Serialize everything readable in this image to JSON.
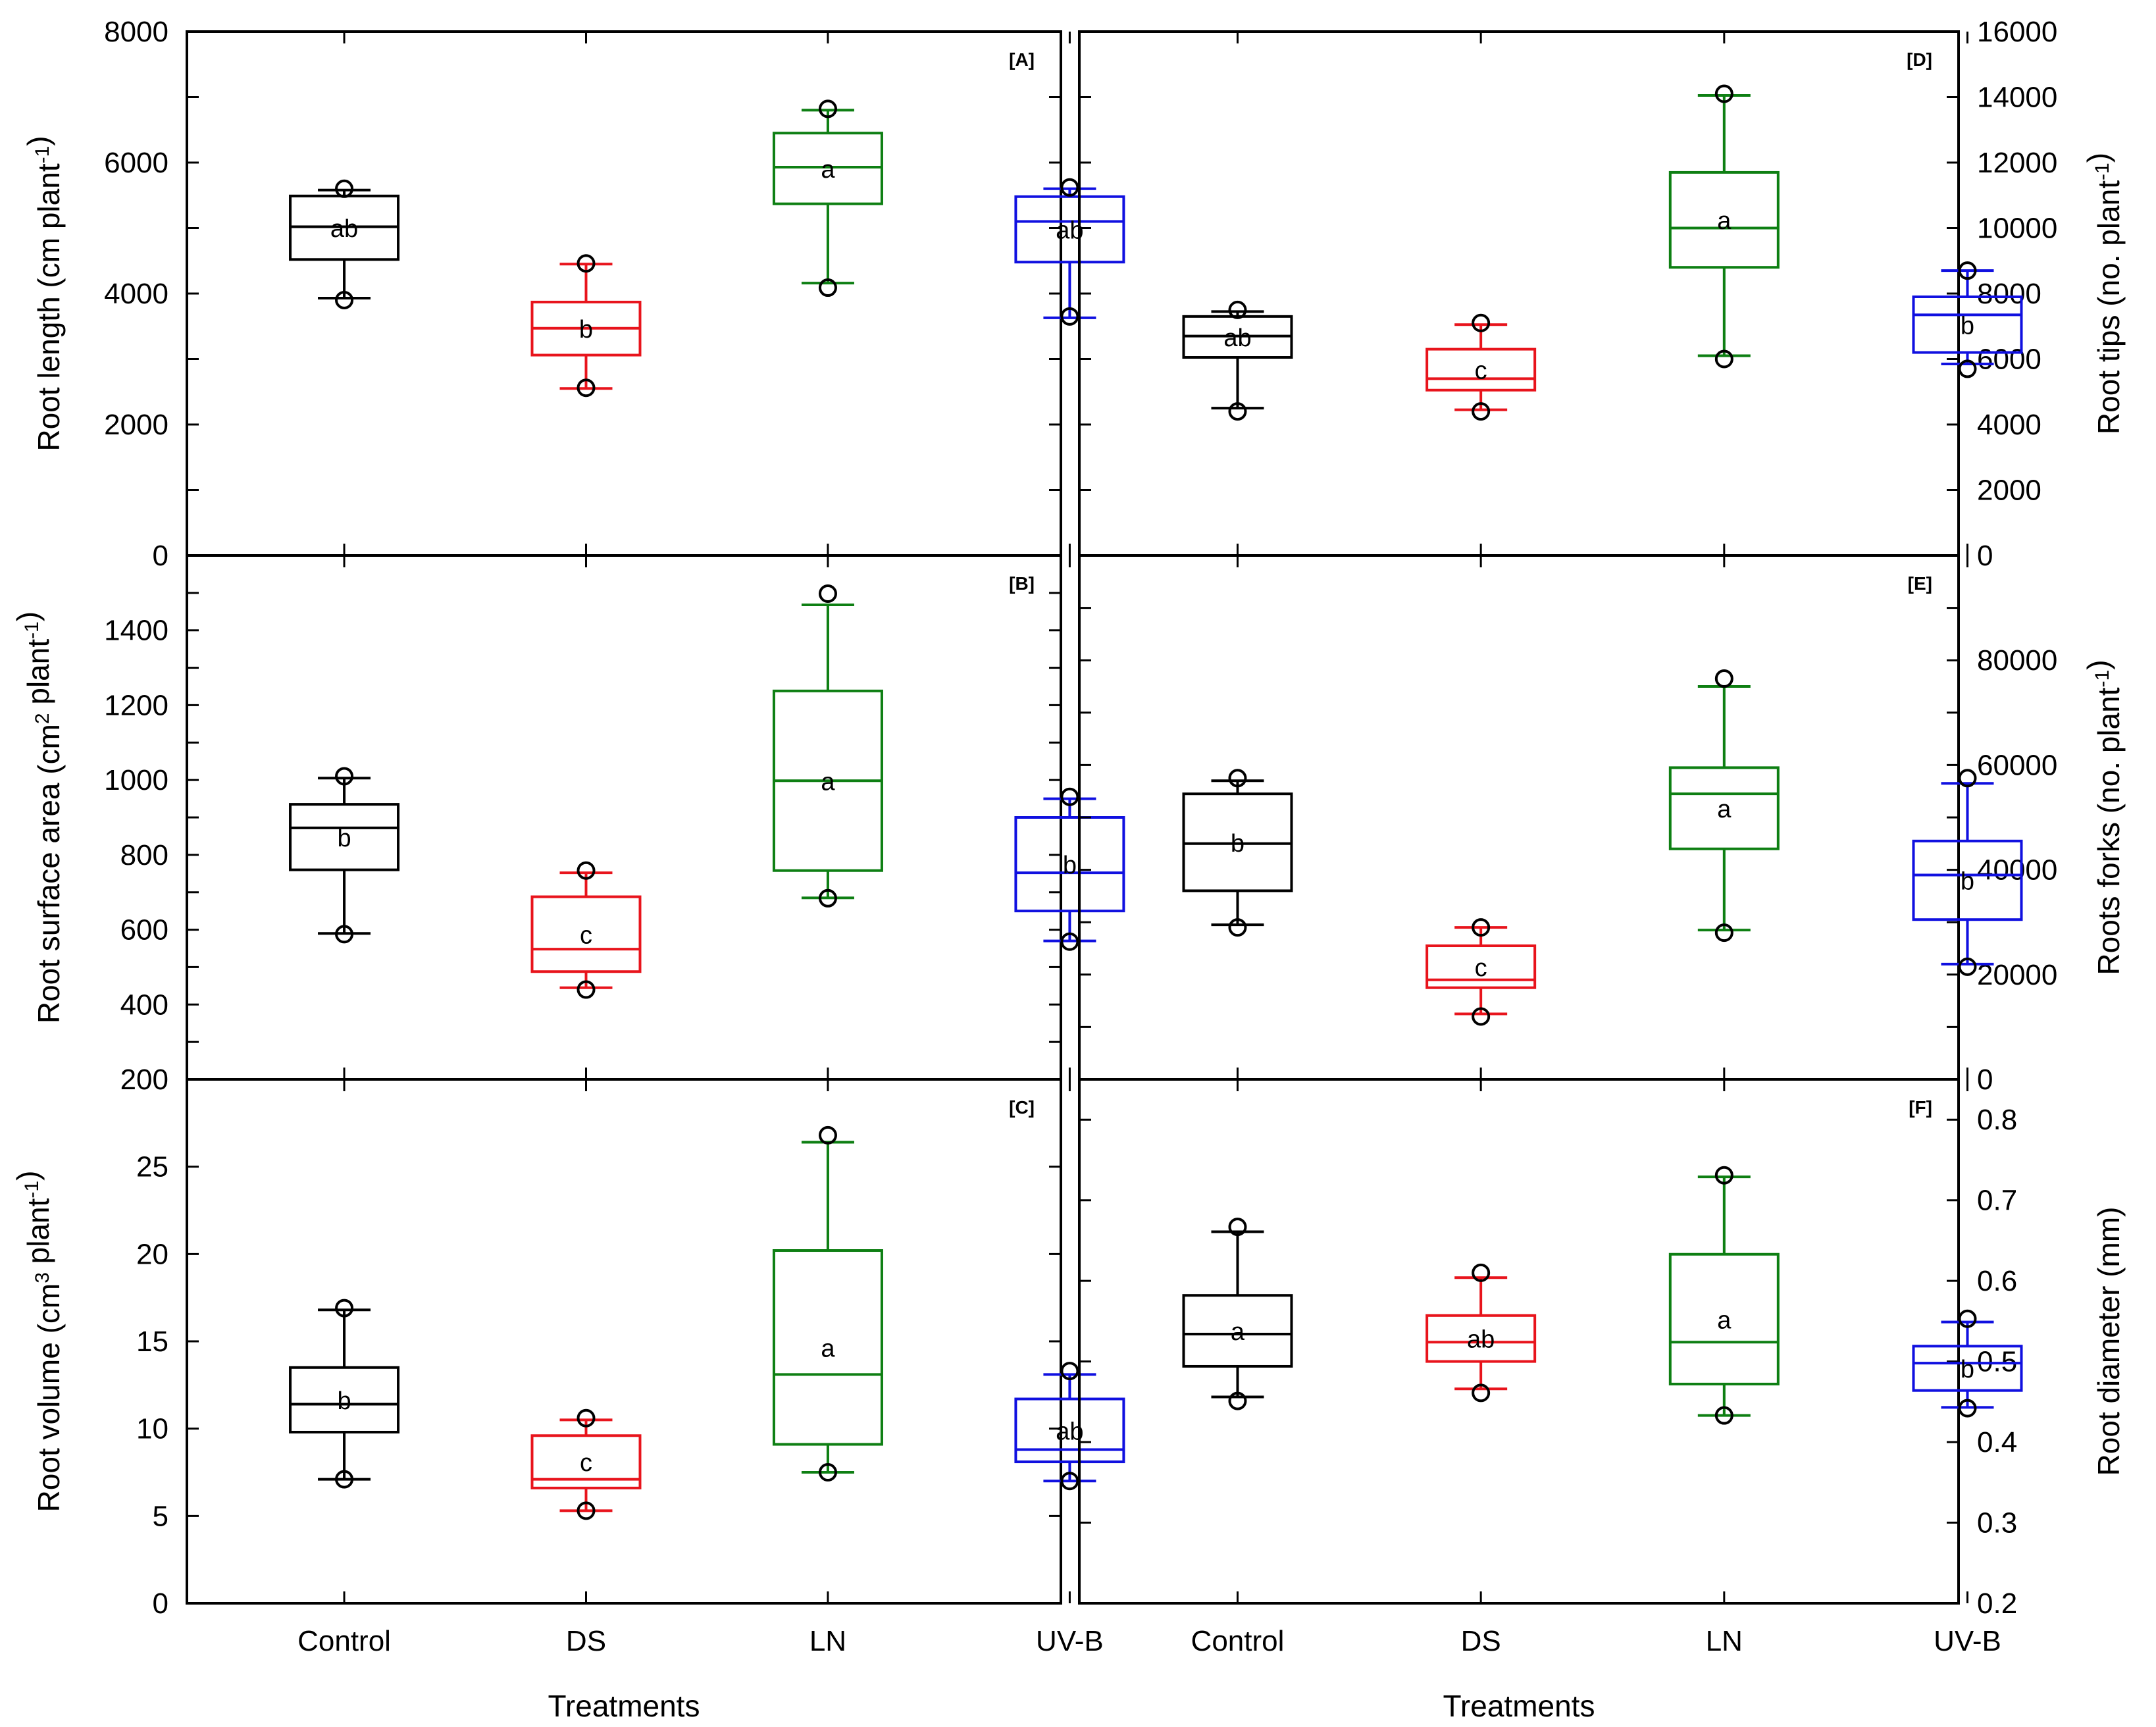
{
  "figure": {
    "x_title": "Treatments",
    "categories": [
      "Control",
      "DS",
      "LN",
      "UV-B"
    ],
    "colors": {
      "Control": "#000000",
      "DS": "#e8141c",
      "LN": "#0e7f13",
      "UV-B": "#1010e0"
    }
  },
  "chart_data": [
    {
      "type": "box",
      "panel": "[A]",
      "title": "",
      "ylabel": "Root length (cm plant",
      "ylabel_sup": "-1",
      "ylabel_tail": ")",
      "ylim": [
        0,
        8000
      ],
      "yticks": [
        0,
        2000,
        4000,
        6000,
        8000
      ],
      "minor_ticks": [
        1000,
        3000,
        5000,
        7000
      ],
      "categories": [
        "Control",
        "DS",
        "LN",
        "UV-B"
      ],
      "boxes": [
        {
          "q1": 4520,
          "median": 5020,
          "q3": 5490,
          "whisker_low": 3930,
          "whisker_high": 5580,
          "outlier_low": 3900,
          "outlier_high": 5600,
          "letter": "ab"
        },
        {
          "q1": 3060,
          "median": 3470,
          "q3": 3870,
          "whisker_low": 2550,
          "whisker_high": 4450,
          "outlier_low": 2560,
          "outlier_high": 4460,
          "letter": "b"
        },
        {
          "q1": 5370,
          "median": 5930,
          "q3": 6450,
          "whisker_low": 4160,
          "whisker_high": 6800,
          "outlier_low": 4090,
          "outlier_high": 6820,
          "letter": "a"
        },
        {
          "q1": 4480,
          "median": 5100,
          "q3": 5480,
          "whisker_low": 3630,
          "whisker_high": 5600,
          "outlier_low": 3650,
          "outlier_high": 5620,
          "letter": "ab"
        }
      ]
    },
    {
      "type": "box",
      "panel": "[B]",
      "title": "",
      "ylabel": "Root surface area (cm",
      "ylabel_sup": "2",
      "ylabel_mid": " plant",
      "ylabel_sup2": "-1",
      "ylabel_tail": ")",
      "ylim": [
        200,
        1600
      ],
      "yticks": [
        200,
        400,
        600,
        800,
        1000,
        1200,
        1400
      ],
      "minor_ticks": [
        300,
        500,
        700,
        900,
        1100,
        1300,
        1500
      ],
      "categories": [
        "Control",
        "DS",
        "LN",
        "UV-B"
      ],
      "boxes": [
        {
          "q1": 760,
          "median": 872,
          "q3": 935,
          "whisker_low": 590,
          "whisker_high": 1005,
          "outlier_low": 588,
          "outlier_high": 1010,
          "letter": "b"
        },
        {
          "q1": 488,
          "median": 548,
          "q3": 688,
          "whisker_low": 445,
          "whisker_high": 752,
          "outlier_low": 440,
          "outlier_high": 758,
          "letter": "c"
        },
        {
          "q1": 758,
          "median": 998,
          "q3": 1238,
          "whisker_low": 685,
          "whisker_high": 1468,
          "outlier_low": 684,
          "outlier_high": 1498,
          "letter": "a"
        },
        {
          "q1": 650,
          "median": 752,
          "q3": 900,
          "whisker_low": 570,
          "whisker_high": 950,
          "outlier_low": 568,
          "outlier_high": 955,
          "letter": "b"
        }
      ]
    },
    {
      "type": "box",
      "panel": "[C]",
      "title": "",
      "ylabel": "Root volume (cm",
      "ylabel_sup": "3",
      "ylabel_mid": " plant",
      "ylabel_sup2": "-1",
      "ylabel_tail": ")",
      "xlabel": "Treatments",
      "ylim": [
        0,
        30
      ],
      "yticks": [
        0,
        5,
        10,
        15,
        20,
        25
      ],
      "minor_ticks": [
        30
      ],
      "categories": [
        "Control",
        "DS",
        "LN",
        "UV-B"
      ],
      "boxes": [
        {
          "q1": 9.8,
          "median": 11.4,
          "q3": 13.5,
          "whisker_low": 7.1,
          "whisker_high": 16.8,
          "outlier_low": 7.1,
          "outlier_high": 16.9,
          "letter": "b"
        },
        {
          "q1": 6.6,
          "median": 7.1,
          "q3": 9.6,
          "whisker_low": 5.3,
          "whisker_high": 10.5,
          "outlier_low": 5.3,
          "outlier_high": 10.6,
          "letter": "c"
        },
        {
          "q1": 9.1,
          "median": 13.1,
          "q3": 20.2,
          "whisker_low": 7.5,
          "whisker_high": 26.4,
          "outlier_low": 7.5,
          "outlier_high": 26.8,
          "letter": "a"
        },
        {
          "q1": 8.1,
          "median": 8.8,
          "q3": 11.7,
          "whisker_low": 7.0,
          "whisker_high": 13.1,
          "outlier_low": 7.0,
          "outlier_high": 13.3,
          "letter": "ab"
        }
      ]
    },
    {
      "type": "box",
      "panel": "[D]",
      "title": "",
      "ylabel": "Root tips (no. plant",
      "ylabel_sup": "-1",
      "ylabel_tail": ")",
      "ylim": [
        0,
        16000
      ],
      "yticks": [
        0,
        2000,
        4000,
        6000,
        8000,
        10000,
        12000,
        14000,
        16000
      ],
      "minor_ticks": [],
      "categories": [
        "Control",
        "DS",
        "LN",
        "UV-B"
      ],
      "boxes": [
        {
          "q1": 6050,
          "median": 6700,
          "q3": 7300,
          "whisker_low": 4500,
          "whisker_high": 7450,
          "outlier_low": 4400,
          "outlier_high": 7500,
          "letter": "ab"
        },
        {
          "q1": 5050,
          "median": 5400,
          "q3": 6300,
          "whisker_low": 4450,
          "whisker_high": 7050,
          "outlier_low": 4400,
          "outlier_high": 7100,
          "letter": "c"
        },
        {
          "q1": 8800,
          "median": 10000,
          "q3": 11700,
          "whisker_low": 6100,
          "whisker_high": 14050,
          "outlier_low": 6000,
          "outlier_high": 14100,
          "letter": "a"
        },
        {
          "q1": 6200,
          "median": 7350,
          "q3": 7900,
          "whisker_low": 5850,
          "whisker_high": 8700,
          "outlier_low": 5700,
          "outlier_high": 8700,
          "letter": "b"
        }
      ]
    },
    {
      "type": "box",
      "panel": "[E]",
      "title": "",
      "ylabel": "Roots forks (no. plant",
      "ylabel_sup": "-1",
      "ylabel_tail": ")",
      "ylim": [
        0,
        100000
      ],
      "yticks": [
        0,
        20000,
        40000,
        60000,
        80000
      ],
      "minor_ticks": [
        10000,
        30000,
        50000,
        70000,
        90000
      ],
      "categories": [
        "Control",
        "DS",
        "LN",
        "UV-B"
      ],
      "boxes": [
        {
          "q1": 36000,
          "median": 45000,
          "q3": 54500,
          "whisker_low": 29500,
          "whisker_high": 57000,
          "outlier_low": 29000,
          "outlier_high": 57500,
          "letter": "b"
        },
        {
          "q1": 17500,
          "median": 19000,
          "q3": 25500,
          "whisker_low": 12500,
          "whisker_high": 29000,
          "outlier_low": 12000,
          "outlier_high": 29000,
          "letter": "c"
        },
        {
          "q1": 44000,
          "median": 54500,
          "q3": 59500,
          "whisker_low": 28500,
          "whisker_high": 75000,
          "outlier_low": 28000,
          "outlier_high": 76500,
          "letter": "a"
        },
        {
          "q1": 30500,
          "median": 39000,
          "q3": 45500,
          "whisker_low": 22000,
          "whisker_high": 56500,
          "outlier_low": 21500,
          "outlier_high": 57500,
          "letter": "b"
        }
      ]
    },
    {
      "type": "box",
      "panel": "[F]",
      "title": "",
      "ylabel": "Root diameter (mm)",
      "xlabel": "Treatments",
      "ylim": [
        0.2,
        0.85
      ],
      "yticks": [
        0.2,
        0.3,
        0.4,
        0.5,
        0.6,
        0.7,
        0.8
      ],
      "minor_ticks": [],
      "categories": [
        "Control",
        "DS",
        "LN",
        "UV-B"
      ],
      "boxes": [
        {
          "q1": 0.494,
          "median": 0.534,
          "q3": 0.582,
          "whisker_low": 0.456,
          "whisker_high": 0.661,
          "outlier_low": 0.451,
          "outlier_high": 0.667,
          "letter": "a"
        },
        {
          "q1": 0.5,
          "median": 0.524,
          "q3": 0.557,
          "whisker_low": 0.466,
          "whisker_high": 0.604,
          "outlier_low": 0.461,
          "outlier_high": 0.61,
          "letter": "ab"
        },
        {
          "q1": 0.472,
          "median": 0.524,
          "q3": 0.633,
          "whisker_low": 0.433,
          "whisker_high": 0.729,
          "outlier_low": 0.433,
          "outlier_high": 0.731,
          "letter": "a"
        },
        {
          "q1": 0.464,
          "median": 0.498,
          "q3": 0.519,
          "whisker_low": 0.443,
          "whisker_high": 0.549,
          "outlier_low": 0.442,
          "outlier_high": 0.553,
          "letter": "b"
        }
      ]
    }
  ]
}
